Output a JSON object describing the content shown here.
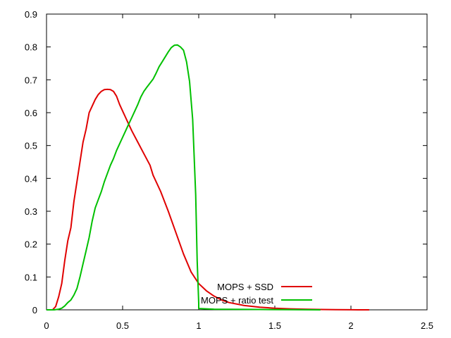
{
  "chart_data": {
    "type": "line",
    "title": "",
    "xlabel": "",
    "ylabel": "",
    "xlim": [
      0,
      2.5
    ],
    "ylim": [
      0,
      0.9
    ],
    "x_ticks": [
      "0",
      "0.5",
      "1",
      "1.5",
      "2",
      "2.5"
    ],
    "y_ticks": [
      "0",
      "0.1",
      "0.2",
      "0.3",
      "0.4",
      "0.5",
      "0.6",
      "0.7",
      "0.8",
      "0.9"
    ],
    "grid": false,
    "legend_position": "bottom-right",
    "series": [
      {
        "name": "MOPS + SSD",
        "color": "#e00000",
        "points": [
          [
            0,
            0
          ],
          [
            0.04,
            0
          ],
          [
            0.06,
            0.01
          ],
          [
            0.08,
            0.04
          ],
          [
            0.1,
            0.08
          ],
          [
            0.12,
            0.15
          ],
          [
            0.14,
            0.21
          ],
          [
            0.16,
            0.25
          ],
          [
            0.18,
            0.33
          ],
          [
            0.2,
            0.39
          ],
          [
            0.22,
            0.45
          ],
          [
            0.24,
            0.51
          ],
          [
            0.26,
            0.55
          ],
          [
            0.28,
            0.6
          ],
          [
            0.3,
            0.62
          ],
          [
            0.32,
            0.64
          ],
          [
            0.34,
            0.655
          ],
          [
            0.36,
            0.665
          ],
          [
            0.38,
            0.67
          ],
          [
            0.4,
            0.671
          ],
          [
            0.42,
            0.67
          ],
          [
            0.44,
            0.665
          ],
          [
            0.46,
            0.65
          ],
          [
            0.48,
            0.625
          ],
          [
            0.5,
            0.605
          ],
          [
            0.52,
            0.585
          ],
          [
            0.54,
            0.565
          ],
          [
            0.56,
            0.545
          ],
          [
            0.6,
            0.51
          ],
          [
            0.64,
            0.475
          ],
          [
            0.68,
            0.44
          ],
          [
            0.7,
            0.41
          ],
          [
            0.75,
            0.36
          ],
          [
            0.8,
            0.3
          ],
          [
            0.85,
            0.235
          ],
          [
            0.9,
            0.17
          ],
          [
            0.95,
            0.115
          ],
          [
            1.0,
            0.08
          ],
          [
            1.05,
            0.058
          ],
          [
            1.1,
            0.042
          ],
          [
            1.15,
            0.03
          ],
          [
            1.2,
            0.022
          ],
          [
            1.3,
            0.013
          ],
          [
            1.4,
            0.008
          ],
          [
            1.5,
            0.005
          ],
          [
            1.6,
            0.003
          ],
          [
            1.7,
            0.002
          ],
          [
            1.8,
            0.001
          ],
          [
            1.9,
            0.0006
          ],
          [
            2.0,
            0.0003
          ],
          [
            2.12,
            0
          ]
        ]
      },
      {
        "name": "MOPS + ratio test",
        "color": "#00c000",
        "points": [
          [
            0,
            0
          ],
          [
            0.05,
            0
          ],
          [
            0.08,
            0.002
          ],
          [
            0.1,
            0.005
          ],
          [
            0.12,
            0.012
          ],
          [
            0.14,
            0.022
          ],
          [
            0.16,
            0.03
          ],
          [
            0.18,
            0.045
          ],
          [
            0.2,
            0.065
          ],
          [
            0.22,
            0.1
          ],
          [
            0.24,
            0.14
          ],
          [
            0.26,
            0.18
          ],
          [
            0.28,
            0.22
          ],
          [
            0.3,
            0.27
          ],
          [
            0.32,
            0.31
          ],
          [
            0.34,
            0.335
          ],
          [
            0.36,
            0.36
          ],
          [
            0.38,
            0.39
          ],
          [
            0.4,
            0.415
          ],
          [
            0.42,
            0.44
          ],
          [
            0.44,
            0.46
          ],
          [
            0.46,
            0.485
          ],
          [
            0.48,
            0.505
          ],
          [
            0.5,
            0.525
          ],
          [
            0.52,
            0.545
          ],
          [
            0.54,
            0.565
          ],
          [
            0.56,
            0.585
          ],
          [
            0.58,
            0.605
          ],
          [
            0.6,
            0.625
          ],
          [
            0.62,
            0.648
          ],
          [
            0.64,
            0.665
          ],
          [
            0.66,
            0.678
          ],
          [
            0.68,
            0.69
          ],
          [
            0.7,
            0.702
          ],
          [
            0.72,
            0.72
          ],
          [
            0.74,
            0.74
          ],
          [
            0.76,
            0.755
          ],
          [
            0.78,
            0.77
          ],
          [
            0.8,
            0.785
          ],
          [
            0.82,
            0.798
          ],
          [
            0.84,
            0.805
          ],
          [
            0.86,
            0.806
          ],
          [
            0.88,
            0.8
          ],
          [
            0.9,
            0.79
          ],
          [
            0.92,
            0.755
          ],
          [
            0.94,
            0.695
          ],
          [
            0.96,
            0.58
          ],
          [
            0.98,
            0.35
          ],
          [
            0.99,
            0.15
          ],
          [
            1.0,
            0.02
          ],
          [
            1.0,
            0.004
          ],
          [
            1.1,
            0.002
          ],
          [
            1.2,
            0.0015
          ],
          [
            1.4,
            0.001
          ],
          [
            1.6,
            0.0005
          ],
          [
            1.8,
            0
          ]
        ]
      }
    ]
  }
}
